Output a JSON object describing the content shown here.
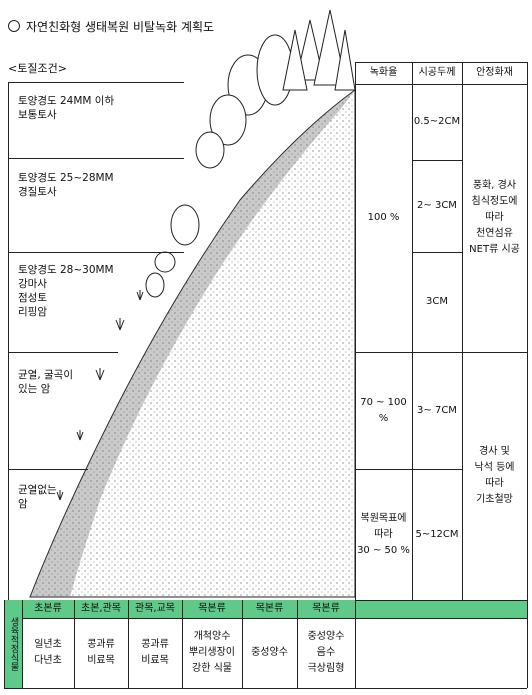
{
  "title": "자연친화형 생태복원 비탈녹화 계획도",
  "soil_header": "<토질조건>",
  "soil_conditions": [
    "토양경도 24MM 이하\n보통토사",
    "토양경도 25~28MM\n경질토사",
    "토양경도 28~30MM\n강마사\n점성토\n리핑암",
    "균열, 굴곡이\n있는 암",
    "균열없는\n암"
  ],
  "columns": {
    "greening_rate": "녹화율",
    "thickness": "시공두께",
    "stabilizer": "안정화재"
  },
  "greening_rate": [
    "100 %",
    "70 ~ 100\n%",
    "복원목표에\n따라\n30 ~ 50 %"
  ],
  "thickness": [
    "0.5~2CM",
    "2~ 3CM",
    "3CM",
    "3~ 7CM",
    "5~12CM"
  ],
  "stabilizer": [
    "풍화, 경사\n침식정도에\n따라\n천연섬유\nNET류 시공",
    "경사 및\n낙석 등에\n따라\n기초철망"
  ],
  "plant_header": "생육적정식물",
  "plants": [
    {
      "type": "초본류",
      "species": "일년초\n다년초"
    },
    {
      "type": "초본,관목",
      "species": "콩과류\n비료목"
    },
    {
      "type": "관목,교목",
      "species": "콩과류\n비료목"
    },
    {
      "type": "목본류",
      "species": "개척양수\n뿌리생장이\n강한 식물"
    },
    {
      "type": "목본류",
      "species": "중성양수"
    },
    {
      "type": "목본류",
      "species": "중성양수\n음수\n극상림형"
    }
  ]
}
